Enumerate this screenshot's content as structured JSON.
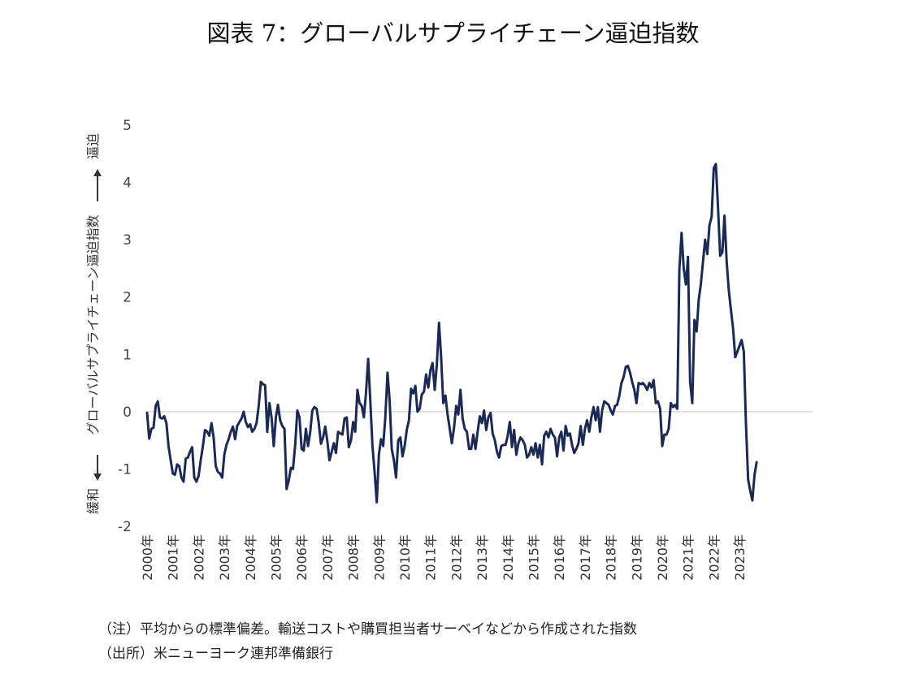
{
  "title": "図表 7：グローバルサプライチェーン逼迫指数",
  "notes": {
    "note": "（注）平均からの標準偏差。輸送コストや購買担当者サーベイなどから作成された指数",
    "source": "（出所）米ニューヨーク連邦準備銀行"
  },
  "chart_data": {
    "type": "line",
    "title": "",
    "xlabel": "",
    "ylabel": "グローバルサプライチェーン逼迫指数",
    "ylabel_top": "逼迫",
    "ylabel_bottom": "緩和",
    "ylim": [
      -2,
      5
    ],
    "yticks": [
      -2,
      -1,
      0,
      1,
      2,
      3,
      4,
      5
    ],
    "xticks": [
      "2000年",
      "2001年",
      "2002年",
      "2003年",
      "2004年",
      "2005年",
      "2006年",
      "2007年",
      "2008年",
      "2009年",
      "2010年",
      "2011年",
      "2012年",
      "2013年",
      "2014年",
      "2015年",
      "2016年",
      "2017年",
      "2018年",
      "2019年",
      "2020年",
      "2021年",
      "2022年",
      "2023年"
    ],
    "grid": false,
    "line_color": "#1b2a55",
    "series": [
      {
        "name": "",
        "x_start": "2000-01",
        "frequency": "monthly",
        "values": [
          -0.02,
          -0.47,
          -0.3,
          -0.28,
          0.1,
          0.18,
          -0.1,
          -0.12,
          -0.08,
          -0.2,
          -0.6,
          -0.85,
          -1.08,
          -1.1,
          -0.92,
          -0.95,
          -1.15,
          -1.22,
          -0.82,
          -0.8,
          -0.7,
          -0.62,
          -1.15,
          -1.22,
          -1.12,
          -0.85,
          -0.6,
          -0.32,
          -0.35,
          -0.42,
          -0.2,
          -0.45,
          -0.95,
          -1.05,
          -1.08,
          -1.15,
          -0.75,
          -0.58,
          -0.48,
          -0.35,
          -0.26,
          -0.48,
          -0.25,
          -0.18,
          -0.12,
          0.0,
          -0.18,
          -0.27,
          -0.22,
          -0.35,
          -0.3,
          -0.2,
          0.1,
          0.52,
          0.48,
          0.46,
          -0.35,
          0.15,
          -0.1,
          -0.6,
          -0.1,
          0.12,
          -0.15,
          -0.25,
          -0.3,
          -1.35,
          -1.2,
          -0.98,
          -1.0,
          -0.58,
          0.02,
          -0.1,
          -0.65,
          -0.68,
          -0.3,
          -0.6,
          -0.35,
          0.02,
          0.08,
          0.05,
          -0.2,
          -0.56,
          -0.45,
          -0.26,
          -0.52,
          -0.85,
          -0.7,
          -0.55,
          -0.72,
          -0.35,
          -0.38,
          -0.4,
          -0.12,
          -0.1,
          -0.62,
          -0.5,
          -0.18,
          -0.35,
          0.38,
          0.15,
          0.1,
          -0.1,
          0.32,
          0.92,
          0.2,
          -0.6,
          -1.05,
          -1.58,
          -0.75,
          -0.48,
          -0.6,
          -0.1,
          0.68,
          0.2,
          -0.65,
          -0.85,
          -1.15,
          -0.5,
          -0.45,
          -0.78,
          -0.6,
          -0.32,
          -0.15,
          0.4,
          0.32,
          0.45,
          0.0,
          0.05,
          0.3,
          0.35,
          0.65,
          0.42,
          0.72,
          0.85,
          0.38,
          0.82,
          1.55,
          0.95,
          0.15,
          0.28,
          -0.05,
          -0.3,
          -0.55,
          -0.28,
          0.1,
          -0.05,
          0.38,
          -0.12,
          -0.3,
          -0.35,
          -0.65,
          -0.65,
          -0.4,
          -0.65,
          -0.35,
          -0.08,
          -0.2,
          0.02,
          -0.32,
          -0.1,
          -0.02,
          -0.38,
          -0.5,
          -0.7,
          -0.8,
          -0.6,
          -0.58,
          -0.58,
          -0.42,
          -0.18,
          -0.62,
          -0.32,
          -0.75,
          -0.55,
          -0.45,
          -0.5,
          -0.58,
          -0.8,
          -0.75,
          -0.62,
          -0.75,
          -0.55,
          -0.8,
          -0.58,
          -0.92,
          -0.42,
          -0.35,
          -0.45,
          -0.3,
          -0.4,
          -0.45,
          -0.78,
          -0.45,
          -0.35,
          -0.68,
          -0.25,
          -0.42,
          -0.38,
          -0.58,
          -0.72,
          -0.65,
          -0.55,
          -0.25,
          -0.58,
          -0.3,
          -0.15,
          -0.35,
          -0.1,
          0.08,
          -0.15,
          0.08,
          -0.35,
          0.02,
          0.18,
          0.15,
          0.12,
          0.02,
          -0.05,
          0.1,
          0.12,
          0.28,
          0.5,
          0.6,
          0.78,
          0.8,
          0.68,
          0.52,
          0.38,
          0.15,
          0.5,
          0.48,
          0.5,
          0.45,
          0.38,
          0.5,
          0.42,
          0.55,
          0.15,
          0.18,
          0.05,
          -0.6,
          -0.4,
          -0.4,
          -0.3,
          0.15,
          0.08,
          0.12,
          0.05,
          2.48,
          3.12,
          2.5,
          2.22,
          2.7,
          0.52,
          0.15,
          1.6,
          1.4,
          1.95,
          2.22,
          2.62,
          3.0,
          2.75,
          3.25,
          3.4,
          4.25,
          4.32,
          3.55,
          2.72,
          2.78,
          3.42,
          2.62,
          2.12,
          1.78,
          1.45,
          0.95,
          1.05,
          1.15,
          1.25,
          1.05,
          -0.2,
          -1.18,
          -1.38,
          -1.55,
          -1.1,
          -0.88
        ]
      }
    ]
  }
}
